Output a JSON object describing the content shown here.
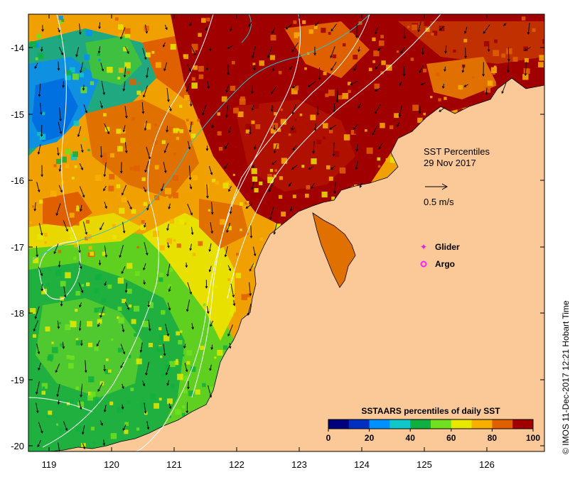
{
  "title": "SST Percentiles",
  "date": "29 Nov 2017",
  "vector_scale_label": "0.5 m/s",
  "legend": {
    "glider_label": "Glider",
    "argo_label": "Argo",
    "glider_color": "#e020e0",
    "argo_color": "#ff20ff"
  },
  "colorbar": {
    "title": "SSTAARS percentiles of daily SST",
    "tick_labels": [
      "0",
      "20",
      "40",
      "60",
      "80",
      "100"
    ],
    "colors": [
      "#00007f",
      "#0030c0",
      "#0090ff",
      "#10c8c8",
      "#10b040",
      "#70e020",
      "#e8e800",
      "#f8b000",
      "#e06000",
      "#a00000"
    ]
  },
  "axes": {
    "x_ticks": [
      "119",
      "120",
      "121",
      "122",
      "123",
      "124",
      "125",
      "126"
    ],
    "y_ticks": [
      "-14",
      "-15",
      "-16",
      "-17",
      "-18",
      "-19",
      "-20"
    ]
  },
  "land_color": "#fbc898",
  "credit": "© IMOS 11-Dec-2017 12:21 Hobart Time"
}
